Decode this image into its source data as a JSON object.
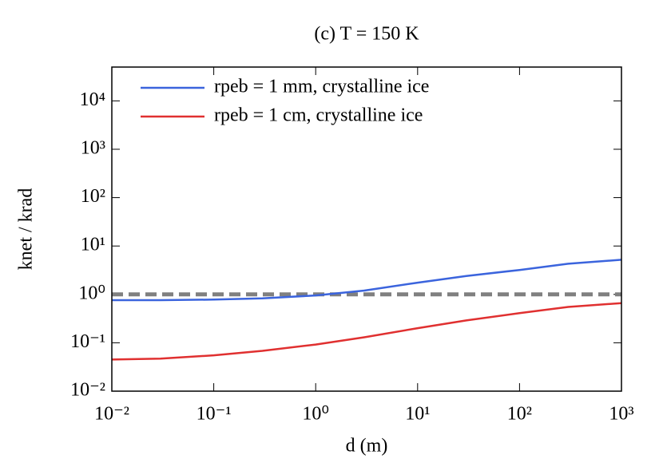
{
  "chart_data": {
    "type": "line",
    "title": "(c) T = 150 K",
    "x_label": "d (m)",
    "y_label": "knet / krad",
    "x": [
      0.01,
      0.03,
      0.1,
      0.3,
      1,
      3,
      10,
      30,
      100,
      300,
      1000
    ],
    "series": [
      {
        "name": "rpeb = 1 mm, crystalline ice",
        "color": "#3b64dd",
        "values": [
          0.76,
          0.76,
          0.78,
          0.83,
          0.95,
          1.2,
          1.75,
          2.4,
          3.2,
          4.3,
          5.2
        ]
      },
      {
        "name": "rpeb = 1 cm, crystalline ice",
        "color": "#e03030",
        "values": [
          0.045,
          0.047,
          0.055,
          0.068,
          0.092,
          0.13,
          0.2,
          0.29,
          0.41,
          0.55,
          0.66
        ]
      }
    ],
    "hline": {
      "value": 1,
      "color": "#808080"
    },
    "xscale": "log",
    "yscale": "log",
    "xlim": [
      0.01,
      1000
    ],
    "ylim": [
      0.01,
      50000
    ],
    "xticks": [
      {
        "value": 0.01,
        "label": "10⁻²"
      },
      {
        "value": 0.1,
        "label": "10⁻¹"
      },
      {
        "value": 1,
        "label": "10⁰"
      },
      {
        "value": 10,
        "label": "10¹"
      },
      {
        "value": 100,
        "label": "10²"
      },
      {
        "value": 1000,
        "label": "10³"
      }
    ],
    "yticks": [
      {
        "value": 0.01,
        "label": "10⁻²"
      },
      {
        "value": 0.1,
        "label": "10⁻¹"
      },
      {
        "value": 1,
        "label": "10⁰"
      },
      {
        "value": 10,
        "label": "10¹"
      },
      {
        "value": 100,
        "label": "10²"
      },
      {
        "value": 1000,
        "label": "10³"
      },
      {
        "value": 10000,
        "label": "10⁴"
      }
    ],
    "legend": "upper left"
  }
}
